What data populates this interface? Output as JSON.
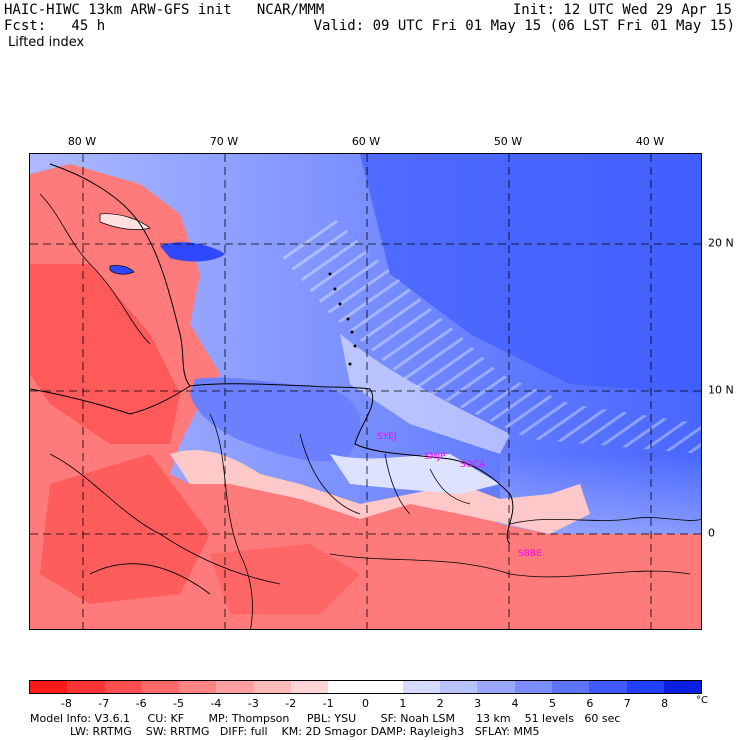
{
  "header": {
    "title": "HAIC-HIWC 13km ARW-GFS init   NCAR/MMM",
    "fcst": "Fcst:   45 h",
    "field": "Lifted index",
    "init": "Init: 12 UTC Wed 29 Apr 15",
    "valid": "Valid: 09 UTC Fri 01 May 15 (06 LST Fri 01 May 15)"
  },
  "map": {
    "longitude_labels": [
      "80 W",
      "70 W",
      "60 W",
      "50 W",
      "40 W"
    ],
    "latitude_labels": [
      "20 N",
      "10 N",
      "0"
    ],
    "stations": [
      "SYEJ",
      "SMJP",
      "SOCA",
      "SBBE"
    ]
  },
  "colorbar": {
    "ticks": [
      "-8",
      "-7",
      "-6",
      "-5",
      "-4",
      "-3",
      "-2",
      "-1",
      "0",
      "1",
      "2",
      "3",
      "4",
      "5",
      "6",
      "7",
      "8"
    ],
    "unit": "°C",
    "colors": [
      "#ff1a1a",
      "#ff3535",
      "#ff4f4f",
      "#ff6a6a",
      "#ff8585",
      "#ffa0a0",
      "#ffbaba",
      "#ffd5d5",
      "#ffffff",
      "#ffffff",
      "#d6dcff",
      "#b8c2ff",
      "#9aa8ff",
      "#7c8eff",
      "#5e74ff",
      "#405aff",
      "#2240ff",
      "#0a1fe0"
    ]
  },
  "footer": {
    "line1": "Model Info: V3.6.1     CU: KF       MP: Thompson     PBL: YSU       SF: Noah LSM      13 km    51 levels   60 sec",
    "line2": "LW: RRTMG    SW: RRTMG   DIFF: full    KM: 2D Smagor DAMP: Rayleigh3   SFLAY: MM5"
  }
}
